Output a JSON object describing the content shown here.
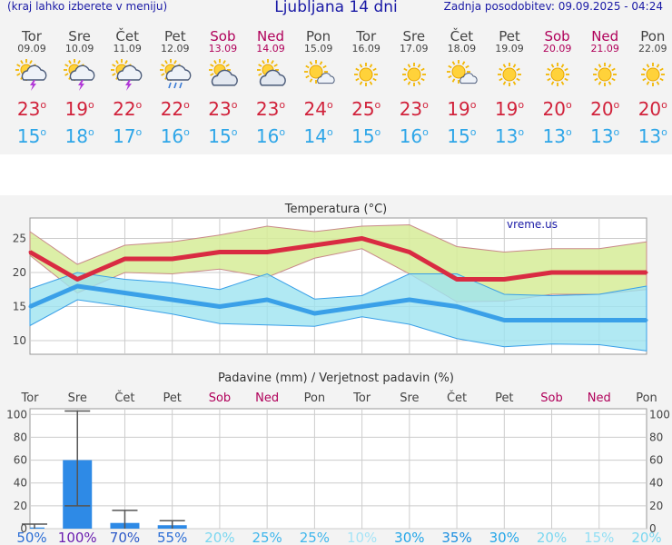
{
  "header": {
    "menu_hint": "(kraj lahko izberete v meniju)",
    "title": "Ljubljana 14 dni",
    "updated": "Zadnja posodobitev: 09.09.2025 - 04:24"
  },
  "days": [
    {
      "name": "Tor",
      "date": "09.09",
      "weekend": false,
      "icon": "sun-cloud-storm-icon",
      "max": "23",
      "min": "15"
    },
    {
      "name": "Sre",
      "date": "10.09",
      "weekend": false,
      "icon": "sun-cloud-storm-icon",
      "max": "19",
      "min": "18"
    },
    {
      "name": "Čet",
      "date": "11.09",
      "weekend": false,
      "icon": "sun-cloud-storm-icon",
      "max": "22",
      "min": "17"
    },
    {
      "name": "Pet",
      "date": "12.09",
      "weekend": false,
      "icon": "sun-cloud-rain-icon",
      "max": "22",
      "min": "16"
    },
    {
      "name": "Sob",
      "date": "13.09",
      "weekend": true,
      "icon": "sun-cloudy-icon",
      "max": "23",
      "min": "15"
    },
    {
      "name": "Ned",
      "date": "14.09",
      "weekend": true,
      "icon": "sun-cloudy-icon",
      "max": "23",
      "min": "16"
    },
    {
      "name": "Pon",
      "date": "15.09",
      "weekend": false,
      "icon": "sun-small-cloud-icon",
      "max": "24",
      "min": "14"
    },
    {
      "name": "Tor",
      "date": "16.09",
      "weekend": false,
      "icon": "sun-icon",
      "max": "25",
      "min": "15"
    },
    {
      "name": "Sre",
      "date": "17.09",
      "weekend": false,
      "icon": "sun-icon",
      "max": "23",
      "min": "16"
    },
    {
      "name": "Čet",
      "date": "18.09",
      "weekend": false,
      "icon": "sun-small-cloud-icon",
      "max": "19",
      "min": "15"
    },
    {
      "name": "Pet",
      "date": "19.09",
      "weekend": false,
      "icon": "sun-icon",
      "max": "19",
      "min": "13"
    },
    {
      "name": "Sob",
      "date": "20.09",
      "weekend": true,
      "icon": "sun-icon",
      "max": "20",
      "min": "13"
    },
    {
      "name": "Ned",
      "date": "21.09",
      "weekend": true,
      "icon": "sun-icon",
      "max": "20",
      "min": "13"
    },
    {
      "name": "Pon",
      "date": "22.09",
      "weekend": false,
      "icon": "sun-icon",
      "max": "20",
      "min": "13"
    }
  ],
  "degree": "o",
  "chart_data": [
    {
      "type": "line",
      "title": "Temperatura (°C)",
      "watermark": "vreme.us",
      "ylim": [
        8,
        28
      ],
      "yticks": [
        10,
        15,
        20,
        25
      ],
      "x": [
        "Tor 09.09",
        "Sre 10.09",
        "Čet 11.09",
        "Pet 12.09",
        "Sob 13.09",
        "Ned 14.09",
        "Pon 15.09",
        "Tor 16.09",
        "Sre 17.09",
        "Čet 18.09",
        "Pet 19.09",
        "Sob 20.09",
        "Ned 21.09",
        "Pon 22.09"
      ],
      "series": [
        {
          "name": "max",
          "values": [
            23,
            19,
            22,
            22,
            23,
            23,
            24,
            25,
            23,
            19,
            19,
            20,
            20,
            20
          ]
        },
        {
          "name": "max_range_high",
          "values": [
            26,
            21.2,
            24,
            24.5,
            25.5,
            26.8,
            26,
            26.8,
            27,
            23.8,
            23,
            23.5,
            23.5,
            24.5
          ]
        },
        {
          "name": "max_range_low",
          "values": [
            22.5,
            17,
            20,
            19.8,
            20.5,
            19.3,
            22.1,
            23.5,
            19.8,
            15.7,
            15.8,
            16.8,
            16.8,
            17.5
          ]
        },
        {
          "name": "min",
          "values": [
            15,
            18,
            17,
            16,
            15,
            16,
            14,
            15,
            16,
            15,
            13,
            13,
            13,
            13
          ]
        },
        {
          "name": "min_range_high",
          "values": [
            17.6,
            20,
            19,
            18.5,
            17.5,
            19.8,
            16.1,
            16.6,
            19.8,
            19.8,
            16.8,
            16.6,
            16.8,
            18
          ]
        },
        {
          "name": "min_range_low",
          "values": [
            12.2,
            16,
            15,
            13.9,
            12.5,
            12.3,
            12.1,
            13.5,
            12.4,
            10.3,
            9.1,
            9.5,
            9.4,
            8.5
          ]
        }
      ],
      "colors": {
        "max": "#d92b42",
        "min": "#3aa0e8",
        "max_band": "#d6ec98",
        "min_band": "#9ee3f0",
        "overlap": "#7fd48a"
      }
    },
    {
      "type": "bar",
      "title": "Padavine (mm) / Verjetnost padavin (%)",
      "categories": [
        "Tor",
        "Sre",
        "Čet",
        "Pet",
        "Sob",
        "Ned",
        "Pon",
        "Tor",
        "Sre",
        "Čet",
        "Pet",
        "Sob",
        "Ned",
        "Pon"
      ],
      "weekend": [
        false,
        false,
        false,
        false,
        true,
        true,
        false,
        false,
        false,
        false,
        false,
        true,
        true,
        false
      ],
      "values": [
        1,
        60,
        5,
        3,
        0,
        0,
        0,
        0,
        0,
        0,
        0,
        0,
        0,
        0
      ],
      "error_high": [
        4,
        103,
        16,
        7,
        0,
        0,
        0,
        0,
        0,
        0,
        0,
        0,
        0,
        0
      ],
      "error_low": [
        0,
        20,
        0,
        0,
        0,
        0,
        0,
        0,
        0,
        0,
        0,
        0,
        0,
        0
      ],
      "ylim": [
        0,
        105
      ],
      "yticks": [
        0,
        20,
        40,
        60,
        80,
        100
      ],
      "probability": [
        "50%",
        "100%",
        "70%",
        "55%",
        "20%",
        "25%",
        "25%",
        "10%",
        "30%",
        "35%",
        "30%",
        "20%",
        "15%",
        "20%"
      ],
      "probability_colors": [
        "#2d6fd6",
        "#6b1fb0",
        "#2d59c8",
        "#2d6fd6",
        "#7ad7f0",
        "#3fb6ec",
        "#3fb6ec",
        "#a6e4f6",
        "#22a6e8",
        "#1e90e0",
        "#22a6e8",
        "#7ad7f0",
        "#94dff4",
        "#7ad7f0"
      ],
      "bar_color": "#2e8ae6"
    }
  ]
}
